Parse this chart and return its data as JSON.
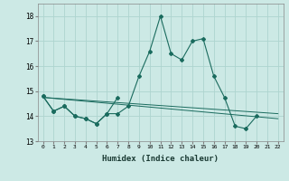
{
  "xlabel": "Humidex (Indice chaleur)",
  "x": [
    0,
    1,
    2,
    3,
    4,
    5,
    6,
    7,
    8,
    9,
    10,
    11,
    12,
    13,
    14,
    15,
    16,
    17,
    18,
    19,
    20,
    21,
    22
  ],
  "line1": [
    14.8,
    14.2,
    14.4,
    14.0,
    13.9,
    13.7,
    14.1,
    14.1,
    14.4,
    15.6,
    16.6,
    18.0,
    16.5,
    16.25,
    17.0,
    17.1,
    15.6,
    14.75,
    13.6,
    13.5,
    14.0,
    null,
    null
  ],
  "line2": [
    14.8,
    14.2,
    14.4,
    14.0,
    13.9,
    13.7,
    14.1,
    14.75,
    null,
    null,
    null,
    null,
    null,
    null,
    null,
    null,
    null,
    null,
    null,
    null,
    null,
    null,
    null
  ],
  "line3_x": [
    0,
    22
  ],
  "line3_y": [
    14.75,
    13.9
  ],
  "line4_x": [
    0,
    22
  ],
  "line4_y": [
    14.75,
    14.1
  ],
  "bg_color": "#cce9e5",
  "grid_color": "#aed4cf",
  "line_color": "#1a6b5e",
  "ylim": [
    13.0,
    18.5
  ],
  "yticks": [
    13,
    14,
    15,
    16,
    17,
    18
  ],
  "xticks": [
    0,
    1,
    2,
    3,
    4,
    5,
    6,
    7,
    8,
    9,
    10,
    11,
    12,
    13,
    14,
    15,
    16,
    17,
    18,
    19,
    20,
    21,
    22
  ]
}
